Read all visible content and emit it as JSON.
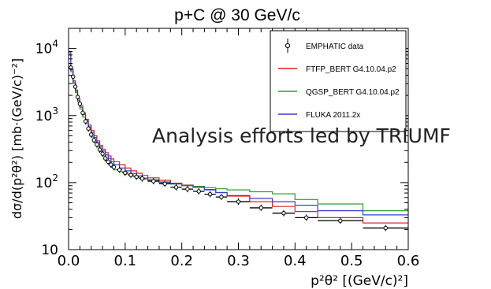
{
  "chart_data": {
    "type": "line",
    "title": "p+C @ 30 GeV/c",
    "xlabel": "p²θ² [(GeV/c)²]",
    "ylabel": "dσ/d(p²θ²) [mb·(GeV/c)⁻²]",
    "xlim": [
      0.0,
      0.6
    ],
    "ylim": [
      10,
      20000
    ],
    "ylog": true,
    "grid": false,
    "legend_position": "top-right",
    "x_ticks": [
      {
        "v": 0.0,
        "label": "0.0"
      },
      {
        "v": 0.1,
        "label": "0.1"
      },
      {
        "v": 0.2,
        "label": "0.2"
      },
      {
        "v": 0.3,
        "label": "0.3"
      },
      {
        "v": 0.4,
        "label": "0.4"
      },
      {
        "v": 0.5,
        "label": "0.5"
      },
      {
        "v": 0.6,
        "label": "0.6"
      }
    ],
    "y_ticks": [
      {
        "v": 10,
        "base": "10",
        "exp": ""
      },
      {
        "v": 100,
        "base": "10",
        "exp": "2"
      },
      {
        "v": 1000,
        "base": "10",
        "exp": "3"
      },
      {
        "v": 10000,
        "base": "10",
        "exp": "4"
      }
    ],
    "x_edges": [
      0.0,
      0.004,
      0.008,
      0.012,
      0.016,
      0.02,
      0.025,
      0.03,
      0.035,
      0.04,
      0.045,
      0.05,
      0.055,
      0.06,
      0.065,
      0.07,
      0.075,
      0.08,
      0.09,
      0.1,
      0.11,
      0.12,
      0.13,
      0.14,
      0.16,
      0.18,
      0.2,
      0.22,
      0.24,
      0.26,
      0.28,
      0.32,
      0.36,
      0.4,
      0.44,
      0.52,
      0.6
    ],
    "series": [
      {
        "name": "FTFP_BERT G4.10.04.p2",
        "color": "#d62728",
        "values": [
          9000,
          5000,
          3300,
          2400,
          1800,
          1400,
          1100,
          880,
          720,
          600,
          500,
          420,
          360,
          315,
          280,
          250,
          225,
          205,
          185,
          165,
          150,
          138,
          128,
          118,
          108,
          98,
          92,
          86,
          79,
          71,
          63,
          52,
          44,
          37,
          30,
          25
        ]
      },
      {
        "name": "QGSP_BERT G4.10.04.p2",
        "color": "#2ca02c",
        "values": [
          8000,
          4500,
          3000,
          2200,
          1600,
          1250,
          950,
          760,
          610,
          480,
          400,
          340,
          290,
          250,
          215,
          190,
          170,
          155,
          145,
          135,
          125,
          118,
          112,
          106,
          100,
          95,
          91,
          88,
          84,
          81,
          78,
          73,
          68,
          56,
          48,
          38
        ]
      },
      {
        "name": "FLUKA 2011.2x",
        "color": "#3b3bd1",
        "values": [
          8600,
          4800,
          3150,
          2300,
          1700,
          1330,
          1040,
          830,
          680,
          560,
          470,
          395,
          340,
          295,
          260,
          230,
          205,
          185,
          165,
          150,
          137,
          126,
          117,
          110,
          102,
          96,
          90,
          85,
          78,
          71,
          64,
          58,
          52,
          46,
          38,
          33
        ]
      }
    ],
    "data_series": {
      "name": "EMPHATIC data",
      "color": "#000000",
      "points": [
        {
          "x": 0.004,
          "y": 5200,
          "xerr": 0.002
        },
        {
          "x": 0.008,
          "y": 3800,
          "xerr": 0.002
        },
        {
          "x": 0.012,
          "y": 2700,
          "xerr": 0.002
        },
        {
          "x": 0.016,
          "y": 1900,
          "xerr": 0.002
        },
        {
          "x": 0.02,
          "y": 1500,
          "xerr": 0.002
        },
        {
          "x": 0.025,
          "y": 1100,
          "xerr": 0.0025
        },
        {
          "x": 0.03,
          "y": 820,
          "xerr": 0.0025
        },
        {
          "x": 0.035,
          "y": 640,
          "xerr": 0.0025
        },
        {
          "x": 0.04,
          "y": 520,
          "xerr": 0.0025
        },
        {
          "x": 0.045,
          "y": 430,
          "xerr": 0.0025
        },
        {
          "x": 0.05,
          "y": 370,
          "xerr": 0.0025
        },
        {
          "x": 0.055,
          "y": 310,
          "xerr": 0.0025
        },
        {
          "x": 0.06,
          "y": 270,
          "xerr": 0.0025
        },
        {
          "x": 0.065,
          "y": 230,
          "xerr": 0.0025
        },
        {
          "x": 0.07,
          "y": 205,
          "xerr": 0.0025
        },
        {
          "x": 0.075,
          "y": 185,
          "xerr": 0.0025
        },
        {
          "x": 0.08,
          "y": 170,
          "xerr": 0.0025
        },
        {
          "x": 0.09,
          "y": 155,
          "xerr": 0.005
        },
        {
          "x": 0.1,
          "y": 140,
          "xerr": 0.005
        },
        {
          "x": 0.11,
          "y": 130,
          "xerr": 0.005
        },
        {
          "x": 0.12,
          "y": 122,
          "xerr": 0.005
        },
        {
          "x": 0.13,
          "y": 115,
          "xerr": 0.005
        },
        {
          "x": 0.15,
          "y": 105,
          "xerr": 0.01
        },
        {
          "x": 0.17,
          "y": 96,
          "xerr": 0.01
        },
        {
          "x": 0.19,
          "y": 85,
          "xerr": 0.01
        },
        {
          "x": 0.21,
          "y": 80,
          "xerr": 0.01
        },
        {
          "x": 0.23,
          "y": 74,
          "xerr": 0.01
        },
        {
          "x": 0.25,
          "y": 67,
          "xerr": 0.01
        },
        {
          "x": 0.27,
          "y": 61,
          "xerr": 0.01
        },
        {
          "x": 0.3,
          "y": 52,
          "xerr": 0.02
        },
        {
          "x": 0.34,
          "y": 42,
          "xerr": 0.02
        },
        {
          "x": 0.38,
          "y": 35,
          "xerr": 0.02
        },
        {
          "x": 0.42,
          "y": 30,
          "xerr": 0.02
        },
        {
          "x": 0.48,
          "y": 27,
          "xerr": 0.04
        },
        {
          "x": 0.56,
          "y": 21,
          "xerr": 0.04
        }
      ]
    }
  },
  "overlay": {
    "text": "Analysis efforts led by TRIUMF"
  }
}
